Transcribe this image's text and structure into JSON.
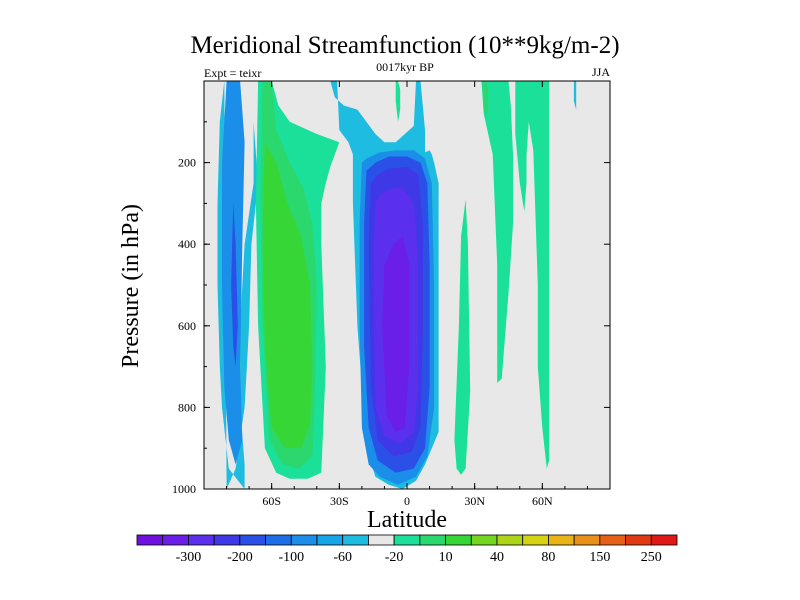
{
  "chart_data": {
    "type": "heatmap",
    "title": "Meridional Streamfunction (10**9kg/m-2)",
    "left_label": "Expt = teixr",
    "center_label": "0017kyr BP",
    "right_label": "JJA",
    "xlabel": "Latitude",
    "ylabel": "Pressure (in hPa)",
    "xlim": [
      -90,
      90
    ],
    "ylim": [
      1000,
      0
    ],
    "x_ticks": [
      {
        "value": -60,
        "label": "60S"
      },
      {
        "value": -30,
        "label": "30S"
      },
      {
        "value": 0,
        "label": "0"
      },
      {
        "value": 30,
        "label": "30N"
      },
      {
        "value": 60,
        "label": "60N"
      }
    ],
    "y_ticks": [
      {
        "value": 200,
        "label": "200"
      },
      {
        "value": 400,
        "label": "400"
      },
      {
        "value": 600,
        "label": "600"
      },
      {
        "value": 800,
        "label": "800"
      },
      {
        "value": 1000,
        "label": "1000"
      }
    ],
    "colorbar": {
      "colors": [
        "#7010e0",
        "#6a1ee8",
        "#5a30ee",
        "#3e38e6",
        "#2a50e8",
        "#1e6ee8",
        "#1a8ee8",
        "#18a4e8",
        "#1ebce0",
        "#e8e8e8",
        "#1ae09a",
        "#2ad86e",
        "#36d636",
        "#74d61e",
        "#aed41a",
        "#d6d214",
        "#e8b418",
        "#e89018",
        "#e66018",
        "#e03a14",
        "#e01818"
      ],
      "labels": [
        {
          "after_box": 1,
          "label": "-300"
        },
        {
          "after_box": 3,
          "label": "-200"
        },
        {
          "after_box": 5,
          "label": "-100"
        },
        {
          "after_box": 7,
          "label": "-60"
        },
        {
          "after_box": 9,
          "label": "-20"
        },
        {
          "after_box": 11,
          "label": "10"
        },
        {
          "after_box": 13,
          "label": "40"
        },
        {
          "after_box": 15,
          "label": "80"
        },
        {
          "after_box": 17,
          "label": "150"
        },
        {
          "after_box": 19,
          "label": "250"
        }
      ]
    },
    "regions": [
      {
        "name": "background",
        "level": "0",
        "color": "#e8e8e8",
        "x": [
          -90,
          90
        ],
        "p": [
          0,
          1000
        ]
      },
      {
        "name": "sh-negative-cell-outer",
        "level": "-20",
        "color": "#1ebce0",
        "lat": [
          -81,
          -83,
          -84,
          -84,
          -83,
          -82,
          -79,
          -72,
          -72,
          -74,
          -74,
          -72,
          -68,
          -68,
          -70,
          -70,
          -68,
          -66,
          -69,
          -70,
          -72,
          -76,
          -80
        ],
        "pres": [
          0,
          100,
          300,
          500,
          700,
          800,
          950,
          1000,
          940,
          800,
          600,
          400,
          250,
          100,
          0,
          0,
          100,
          250,
          400,
          600,
          800,
          950,
          1000
        ]
      },
      {
        "name": "sh-negative-cell-inner",
        "level": "-60",
        "color": "#1a8ee8",
        "lat": [
          -80,
          -82,
          -82,
          -81,
          -79,
          -76,
          -73,
          -74,
          -73,
          -72,
          -74,
          -78
        ],
        "pres": [
          0,
          200,
          500,
          750,
          880,
          940,
          880,
          700,
          400,
          150,
          0,
          0
        ]
      },
      {
        "name": "sh-negative-cell-core",
        "level": "-100",
        "color": "#2a50e8",
        "lat": [
          -77,
          -78,
          -77,
          -76,
          -75,
          -76
        ],
        "pres": [
          300,
          500,
          650,
          700,
          600,
          400
        ]
      },
      {
        "name": "sh-positive-cell",
        "level": "10",
        "color": "#1ae09a",
        "lat": [
          -66,
          -67,
          -66,
          -63,
          -58,
          -52,
          -44,
          -38,
          -36,
          -38,
          -38,
          -36,
          -34,
          -30,
          -40,
          -52,
          -57,
          -60,
          -60
        ],
        "pres": [
          0,
          300,
          600,
          900,
          960,
          975,
          975,
          960,
          700,
          400,
          300,
          250,
          210,
          150,
          130,
          100,
          60,
          0,
          0
        ]
      },
      {
        "name": "sh-positive-cell-inner",
        "level": "40",
        "color": "#2ad86e",
        "lat": [
          -64,
          -65,
          -64,
          -61,
          -55,
          -48,
          -42,
          -41,
          -40,
          -42,
          -46,
          -52,
          -58,
          -60
        ],
        "pres": [
          0,
          300,
          600,
          880,
          940,
          950,
          920,
          800,
          500,
          350,
          260,
          200,
          120,
          0
        ]
      },
      {
        "name": "sh-positive-cell-core",
        "level": "60",
        "color": "#36d636",
        "lat": [
          -63,
          -64,
          -63,
          -60,
          -54,
          -47,
          -43,
          -42,
          -43,
          -47,
          -53,
          -58
        ],
        "pres": [
          150,
          400,
          650,
          850,
          900,
          900,
          840,
          700,
          500,
          380,
          300,
          200
        ]
      },
      {
        "name": "hadley-outer",
        "level": "-20",
        "color": "#1ebce0",
        "lat": [
          -31,
          -30,
          -26,
          -24,
          -24,
          -22,
          -18,
          -14,
          -8,
          -2,
          4,
          8,
          14,
          14,
          14,
          12,
          11,
          10,
          8,
          8,
          7,
          6,
          4,
          3,
          -5,
          -10,
          -14,
          -18,
          -22,
          -28,
          -32,
          -34,
          -31
        ],
        "pres": [
          0,
          120,
          150,
          180,
          300,
          600,
          900,
          970,
          990,
          1000,
          980,
          940,
          860,
          500,
          250,
          200,
          180,
          170,
          175,
          120,
          60,
          0,
          0,
          110,
          150,
          150,
          130,
          100,
          70,
          60,
          40,
          0,
          0
        ]
      },
      {
        "name": "hadley-inner-1",
        "level": "-60",
        "color": "#1a8ee8",
        "lat": [
          -20,
          -21,
          -21,
          -20,
          -17,
          -12,
          -4,
          4,
          9,
          12,
          12,
          11,
          8,
          3,
          -5,
          -12,
          -18
        ],
        "pres": [
          200,
          350,
          600,
          850,
          940,
          970,
          990,
          970,
          920,
          800,
          500,
          250,
          190,
          170,
          170,
          175,
          190
        ]
      },
      {
        "name": "hadley-inner-2",
        "level": "-100",
        "color": "#2a50e8",
        "lat": [
          -18,
          -19,
          -19,
          -17,
          -13,
          -5,
          3,
          8,
          10,
          10,
          9,
          6,
          0,
          -8,
          -14
        ],
        "pres": [
          220,
          350,
          650,
          850,
          930,
          960,
          950,
          900,
          750,
          450,
          250,
          200,
          185,
          185,
          200
        ]
      },
      {
        "name": "hadley-inner-3",
        "level": "-200",
        "color": "#3e38e6",
        "lat": [
          -16,
          -17,
          -16,
          -13,
          -6,
          2,
          6,
          7,
          7,
          5,
          0,
          -8,
          -13
        ],
        "pres": [
          250,
          400,
          750,
          880,
          920,
          910,
          850,
          600,
          350,
          230,
          210,
          215,
          230
        ]
      },
      {
        "name": "hadley-core",
        "level": "-300",
        "color": "#5a30ee",
        "lat": [
          -14,
          -15,
          -14,
          -10,
          -3,
          3,
          5,
          5,
          3,
          -2,
          -8,
          -12
        ],
        "pres": [
          300,
          450,
          800,
          870,
          890,
          860,
          750,
          450,
          300,
          260,
          265,
          280
        ]
      },
      {
        "name": "hadley-core-peak",
        "level": "-300",
        "color": "#6a1ee8",
        "lat": [
          -10,
          -11,
          -9,
          -5,
          -1,
          1,
          1,
          -2,
          -6
        ],
        "pres": [
          450,
          600,
          820,
          860,
          850,
          700,
          450,
          380,
          400
        ]
      },
      {
        "name": "tropical-upper-positive",
        "level": "10",
        "color": "#1ae09a",
        "lat": [
          -5,
          -5,
          -4,
          -3,
          -3,
          -4
        ],
        "pres": [
          0,
          50,
          100,
          70,
          20,
          0
        ]
      },
      {
        "name": "nh-positive-strip-1",
        "level": "10",
        "color": "#1ae09a",
        "lat": [
          21,
          22,
          24,
          26,
          28,
          27,
          26,
          24,
          23
        ],
        "pres": [
          880,
          950,
          965,
          950,
          760,
          400,
          290,
          380,
          600
        ]
      },
      {
        "name": "nh-positive-cell",
        "level": "10",
        "color": "#1ae09a",
        "lat": [
          33,
          34,
          36,
          38,
          40,
          40,
          42,
          45,
          47,
          47,
          46,
          45,
          44,
          40,
          33
        ],
        "pres": [
          0,
          80,
          130,
          180,
          450,
          740,
          730,
          520,
          350,
          180,
          60,
          0,
          0,
          0,
          0
        ]
      },
      {
        "name": "nh-positive-cell-inner",
        "level": "40",
        "color": "#2ad86e",
        "lat": [
          34,
          34,
          35,
          36,
          36,
          35
        ],
        "pres": [
          0,
          60,
          90,
          70,
          20,
          0
        ]
      },
      {
        "name": "nh-positive-strip-2",
        "level": "10",
        "color": "#1ae09a",
        "lat": [
          48,
          48,
          50,
          52,
          53,
          53,
          54,
          56,
          58,
          58,
          60,
          62,
          63,
          63
        ],
        "pres": [
          0,
          130,
          250,
          320,
          250,
          180,
          100,
          170,
          500,
          700,
          850,
          950,
          930,
          0
        ]
      },
      {
        "name": "polar-negative-sliver",
        "level": "-20",
        "color": "#1ebce0",
        "lat": [
          74,
          74,
          75,
          75
        ],
        "pres": [
          0,
          50,
          70,
          0
        ]
      }
    ]
  }
}
